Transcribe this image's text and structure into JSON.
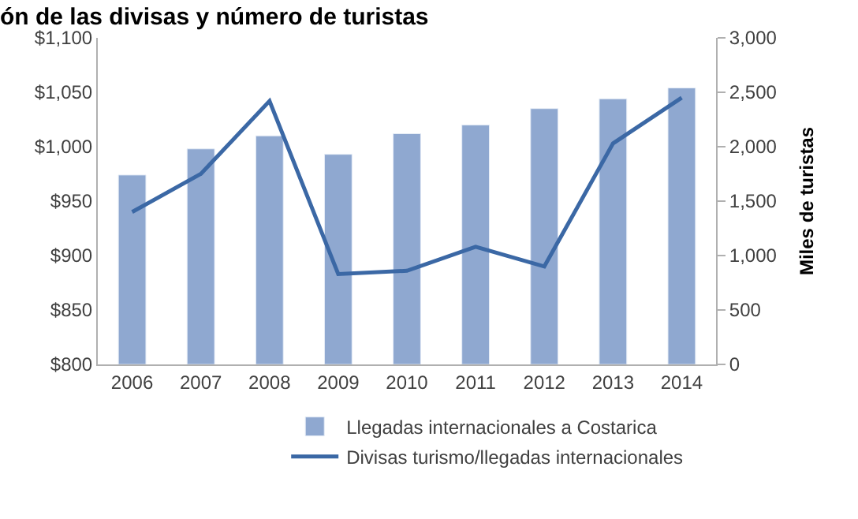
{
  "chart_data": {
    "type": "bar",
    "title": "ón de las divisas y número de turistas",
    "y2label": "Miles de turistas",
    "categories": [
      "2006",
      "2007",
      "2008",
      "2009",
      "2010",
      "2011",
      "2012",
      "2013",
      "2014"
    ],
    "series": [
      {
        "name": "Llegadas internacionales a Costarica",
        "axis": "y2",
        "color": "#8fa8d0",
        "values": [
          1740,
          1980,
          2100,
          1930,
          2120,
          2200,
          2350,
          2440,
          2540
        ]
      },
      {
        "name": "Divisas turismo/llegadas internacionales",
        "type": "line",
        "axis": "y",
        "color": "#3b68a5",
        "values": [
          940,
          975,
          1042,
          883,
          886,
          908,
          890,
          1003,
          1045
        ]
      }
    ],
    "ylim": [
      800,
      1100
    ],
    "yticks": [
      {
        "value": 800,
        "label": "$800"
      },
      {
        "value": 850,
        "label": "$850"
      },
      {
        "value": 900,
        "label": "$900"
      },
      {
        "value": 950,
        "label": "$950"
      },
      {
        "value": 1000,
        "label": "$1,000"
      },
      {
        "value": 1050,
        "label": "$1,050"
      },
      {
        "value": 1100,
        "label": "$1,100"
      }
    ],
    "y2lim": [
      0,
      3000
    ],
    "y2ticks": [
      0,
      500,
      {
        "value": 1000,
        "label": "1,000"
      },
      {
        "value": 1500,
        "label": "1,500"
      },
      {
        "value": 2000,
        "label": "2,000"
      },
      {
        "value": 2500,
        "label": "2,500"
      },
      {
        "value": 3000,
        "label": "3,000"
      }
    ],
    "legend": "bottom",
    "marker": "none",
    "line_style": "solid"
  }
}
